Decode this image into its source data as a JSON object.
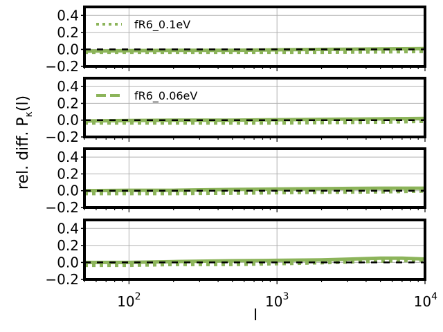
{
  "figure": {
    "ylabel": "rel. diff. P",
    "ylabel_sub": "κ",
    "ylabel_suffix": "(l)",
    "xlabel": "l"
  },
  "colors": {
    "series": "#8cb45a",
    "reference": "#000000",
    "grid": "#b0b0b0",
    "frame": "#000000"
  },
  "chart_data": [
    {
      "type": "line",
      "xscale": "log",
      "xlim": [
        50,
        10000
      ],
      "ylim": [
        -0.2,
        0.5
      ],
      "yticks": [
        "0.4",
        "0.2",
        "0.0",
        "−0.2"
      ],
      "ytick_values": [
        0.4,
        0.2,
        0.0,
        -0.2
      ],
      "grid": true,
      "legend": {
        "label": "fR6_0.1eV",
        "placement": "top-left",
        "style": "dotted"
      },
      "series": [
        {
          "name": "fR6_0.1eV",
          "style": "solid",
          "x": [
            50,
            100,
            200,
            500,
            1000,
            2000,
            5000,
            10000
          ],
          "y": [
            -0.02,
            -0.015,
            -0.01,
            -0.01,
            -0.005,
            0.0,
            0.005,
            0.01
          ]
        },
        {
          "style": "dotted",
          "x": [
            50,
            100,
            200,
            500,
            1000,
            2000,
            5000,
            10000
          ],
          "y": [
            -0.03,
            -0.03,
            -0.03,
            -0.03,
            -0.03,
            -0.03,
            -0.025,
            -0.02
          ]
        },
        {
          "style": "reference",
          "x": [
            50,
            10000
          ],
          "y": [
            0,
            0
          ]
        }
      ]
    },
    {
      "type": "line",
      "xscale": "log",
      "xlim": [
        50,
        10000
      ],
      "ylim": [
        -0.2,
        0.5
      ],
      "yticks": [
        "0.4",
        "0.2",
        "0.0",
        "−0.2"
      ],
      "ytick_values": [
        0.4,
        0.2,
        0.0,
        -0.2
      ],
      "grid": true,
      "legend": {
        "label": "fR6_0.06eV",
        "placement": "top-left",
        "style": "dashed"
      },
      "series": [
        {
          "name": "fR6_0.06eV",
          "style": "solid",
          "x": [
            50,
            100,
            200,
            500,
            1000,
            2000,
            5000,
            10000
          ],
          "y": [
            -0.01,
            -0.005,
            0.0,
            0.0,
            0.005,
            0.01,
            0.015,
            0.02
          ]
        },
        {
          "style": "dotted",
          "x": [
            50,
            100,
            200,
            500,
            1000,
            2000,
            5000,
            10000
          ],
          "y": [
            -0.03,
            -0.03,
            -0.03,
            -0.03,
            -0.03,
            -0.025,
            -0.02,
            -0.01
          ]
        },
        {
          "style": "reference",
          "x": [
            50,
            10000
          ],
          "y": [
            0,
            0
          ]
        }
      ]
    },
    {
      "type": "line",
      "xscale": "log",
      "xlim": [
        50,
        10000
      ],
      "ylim": [
        -0.2,
        0.5
      ],
      "yticks": [
        "0.4",
        "0.2",
        "0.0",
        "−0.2"
      ],
      "ytick_values": [
        0.4,
        0.2,
        0.0,
        -0.2
      ],
      "grid": true,
      "series": [
        {
          "style": "solid",
          "x": [
            50,
            100,
            200,
            500,
            1000,
            2000,
            5000,
            10000
          ],
          "y": [
            0.0,
            0.005,
            0.005,
            0.015,
            0.02,
            0.025,
            0.03,
            0.03
          ]
        },
        {
          "style": "dotted",
          "x": [
            50,
            100,
            200,
            500,
            1000,
            2000,
            5000,
            10000
          ],
          "y": [
            -0.03,
            -0.03,
            -0.03,
            -0.025,
            -0.02,
            -0.015,
            -0.01,
            0.0
          ]
        },
        {
          "style": "reference",
          "x": [
            50,
            10000
          ],
          "y": [
            0,
            0
          ]
        }
      ]
    },
    {
      "type": "line",
      "xscale": "log",
      "xlim": [
        50,
        10000
      ],
      "ylim": [
        -0.2,
        0.5
      ],
      "yticks": [
        "0.4",
        "0.2",
        "0.0",
        "−0.2"
      ],
      "ytick_values": [
        0.4,
        0.2,
        0.0,
        -0.2
      ],
      "grid": true,
      "xticks": [
        {
          "base": "10",
          "exp": "2",
          "value": 100
        },
        {
          "base": "10",
          "exp": "3",
          "value": 1000
        },
        {
          "base": "10",
          "exp": "4",
          "value": 10000
        }
      ],
      "series": [
        {
          "style": "solid",
          "x": [
            50,
            100,
            200,
            500,
            1000,
            2000,
            5000,
            7000,
            10000
          ],
          "y": [
            0.0,
            0.0,
            0.01,
            0.02,
            0.025,
            0.03,
            0.05,
            0.05,
            0.04
          ]
        },
        {
          "style": "dotted",
          "x": [
            50,
            100,
            200,
            500,
            1000,
            2000,
            5000,
            10000
          ],
          "y": [
            -0.03,
            -0.03,
            -0.02,
            -0.02,
            -0.01,
            0.0,
            0.02,
            0.03
          ]
        },
        {
          "style": "reference",
          "x": [
            50,
            10000
          ],
          "y": [
            0,
            0
          ]
        }
      ]
    }
  ]
}
